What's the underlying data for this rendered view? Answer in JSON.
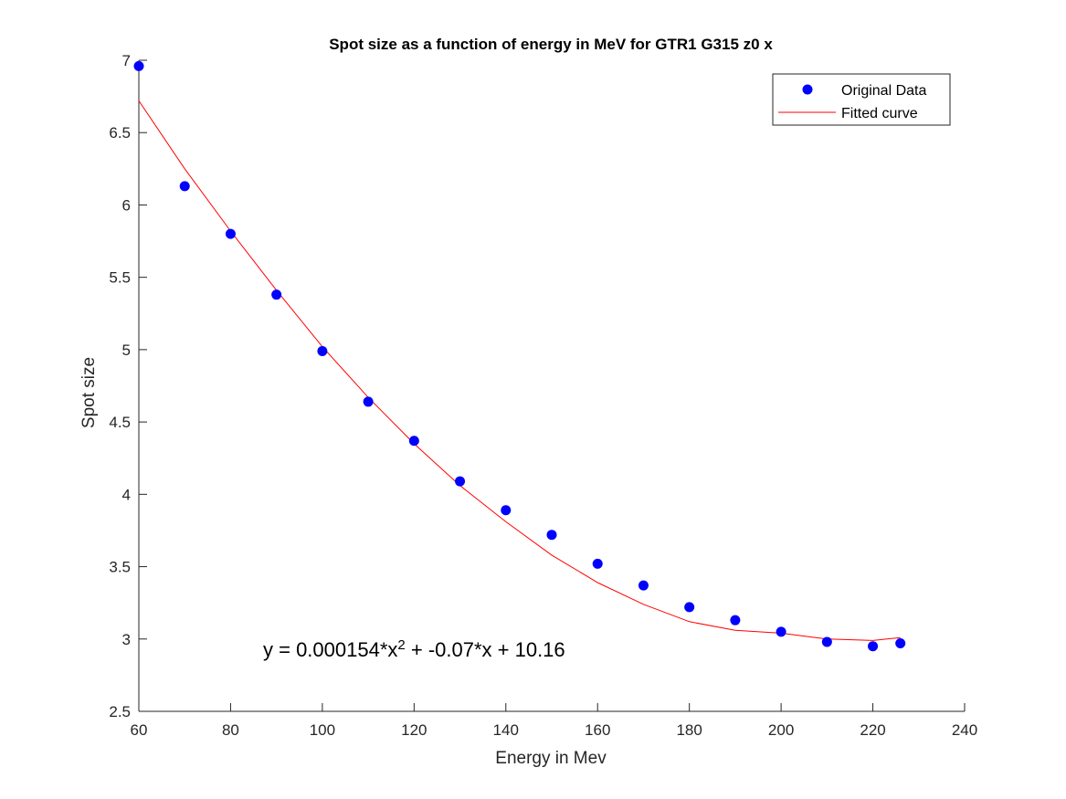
{
  "chart_data": {
    "type": "scatter",
    "title": "Spot size as a function of energy in MeV for GTR1 G315 z0 x",
    "xlabel": "Energy in Mev",
    "ylabel": "Spot size",
    "xlim": [
      60,
      240
    ],
    "ylim": [
      2.5,
      7
    ],
    "xticks": [
      60,
      80,
      100,
      120,
      140,
      160,
      180,
      200,
      220,
      240
    ],
    "yticks": [
      2.5,
      3,
      3.5,
      4,
      4.5,
      5,
      5.5,
      6,
      6.5,
      7
    ],
    "xtick_labels": [
      "60",
      "80",
      "100",
      "120",
      "140",
      "160",
      "180",
      "200",
      "220",
      "240"
    ],
    "ytick_labels": [
      "2.5",
      "3",
      "3.5",
      "4",
      "4.5",
      "5",
      "5.5",
      "6",
      "6.5",
      "7"
    ],
    "grid": false,
    "legend_position": "top-right",
    "series": [
      {
        "name": "Original Data",
        "kind": "markers",
        "color": "#0000ff",
        "x": [
          60,
          70,
          80,
          90,
          100,
          110,
          120,
          130,
          140,
          150,
          160,
          170,
          180,
          190,
          200,
          210,
          220,
          226
        ],
        "y": [
          6.96,
          6.13,
          5.8,
          5.38,
          4.99,
          4.64,
          4.37,
          4.09,
          3.89,
          3.72,
          3.52,
          3.37,
          3.22,
          3.13,
          3.05,
          2.98,
          2.95,
          2.97
        ]
      },
      {
        "name": "Fitted curve",
        "kind": "line",
        "color": "#ff0000",
        "x": [
          60,
          70,
          80,
          90,
          100,
          110,
          120,
          130,
          140,
          150,
          160,
          170,
          180,
          190,
          200,
          210,
          220,
          226
        ],
        "y": [
          6.72,
          6.25,
          5.82,
          5.41,
          5.02,
          4.67,
          4.35,
          4.06,
          3.81,
          3.58,
          3.39,
          3.24,
          3.12,
          3.06,
          3.04,
          3.0,
          2.99,
          3.01
        ]
      }
    ],
    "annotation": {
      "prefix": "y = 0.000154*x",
      "superscript": "2",
      "suffix": " + -0.07*x + 10.16",
      "at": [
        120,
        2.88
      ]
    }
  }
}
